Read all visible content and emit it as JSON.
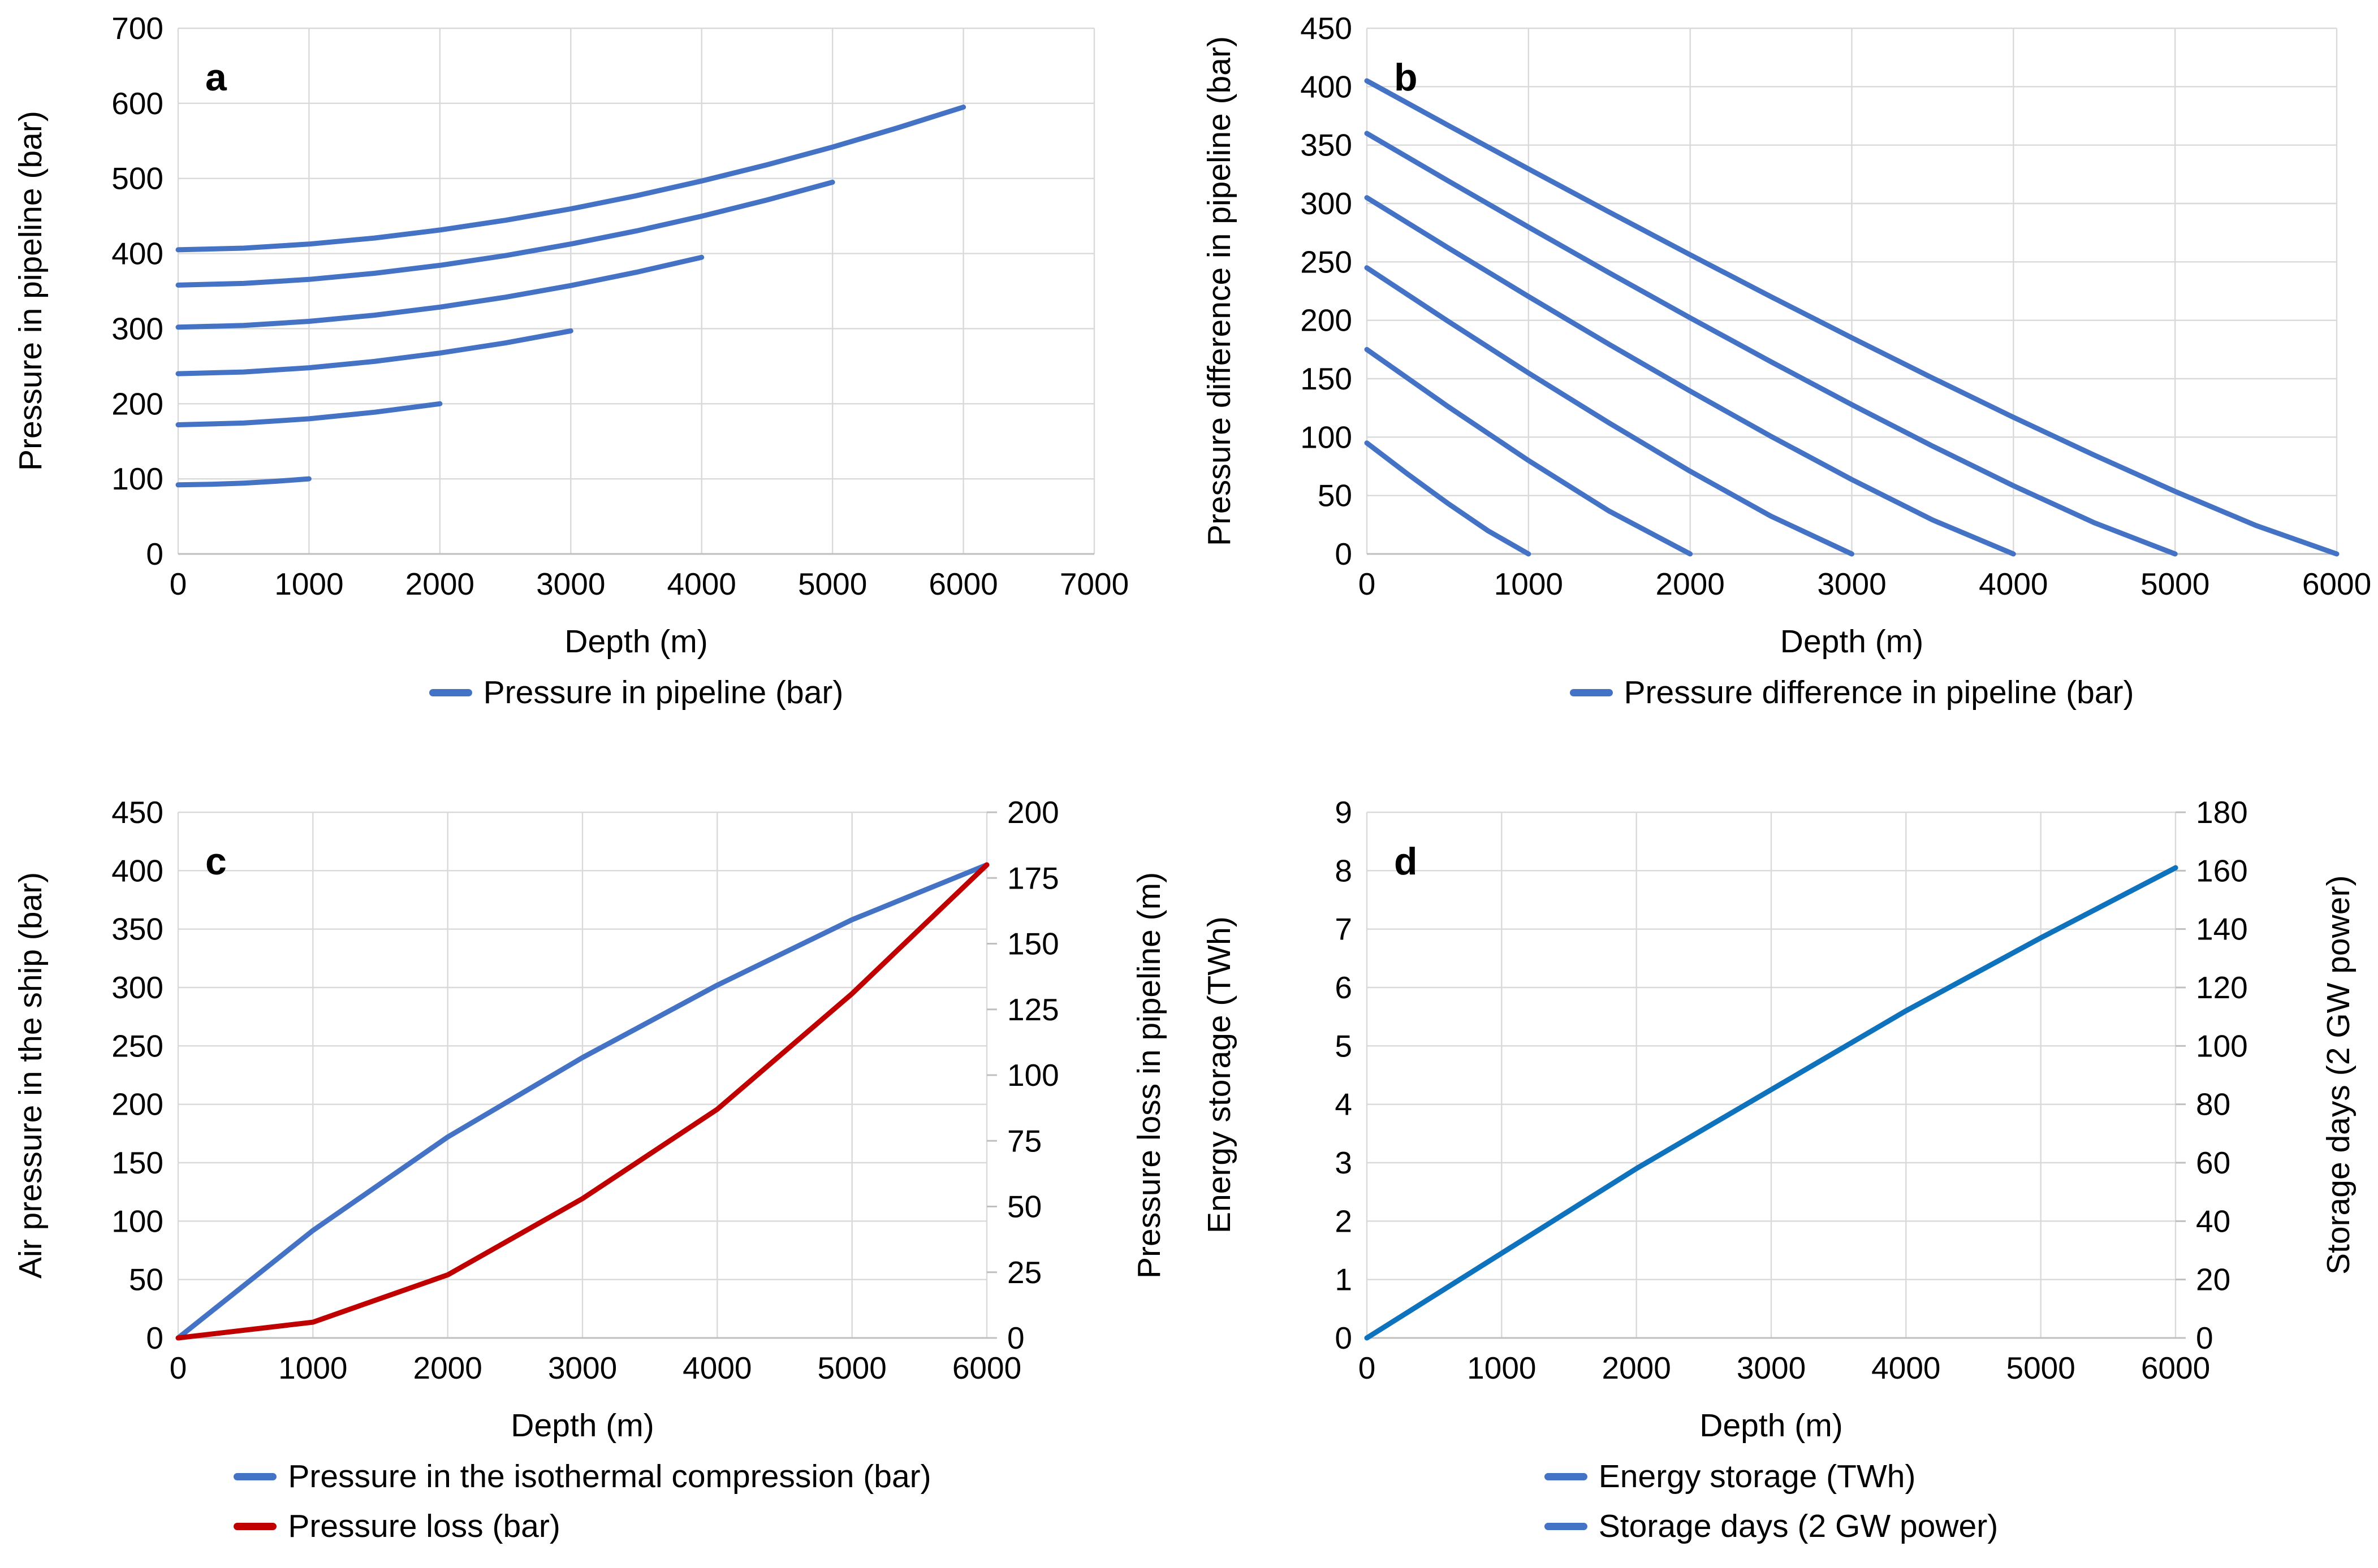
{
  "figure": {
    "background": "#ffffff",
    "panel_letters": [
      "a",
      "b",
      "c",
      "d"
    ]
  },
  "colors": {
    "series_blue": "#4472C4",
    "series_red": "#C00000",
    "panel_d_line_blue": "#0F72BD",
    "grid": "#D9D9D9",
    "axis": "#BFBFBF",
    "text": "#000000"
  },
  "chart_data": [
    {
      "id": "a",
      "type": "line",
      "panel_label": "a",
      "xlabel": "Depth (m)",
      "ylabel": "Pressure in pipeline (bar)",
      "xlim": [
        0,
        7000
      ],
      "xstep": 1000,
      "ylim": [
        0,
        700
      ],
      "ystep": 100,
      "grid": true,
      "legend": [
        {
          "label": "Pressure in pipeline (bar)",
          "color": "#4472C4"
        }
      ],
      "series": [
        {
          "name": "pipeline to 1000 m",
          "color": "#4472C4",
          "axis": "y",
          "x": [
            0,
            250,
            500,
            750,
            1000
          ],
          "y": [
            92,
            92.7,
            94.3,
            96.8,
            100
          ]
        },
        {
          "name": "pipeline to 2000 m",
          "color": "#4472C4",
          "axis": "y",
          "x": [
            0,
            500,
            1000,
            1500,
            2000
          ],
          "y": [
            172,
            174.3,
            180,
            188.7,
            200
          ]
        },
        {
          "name": "pipeline to 3000 m",
          "color": "#4472C4",
          "axis": "y",
          "x": [
            0,
            500,
            1000,
            1500,
            2000,
            2500,
            3000
          ],
          "y": [
            240,
            242.3,
            247.9,
            256.4,
            267.5,
            281,
            297
          ]
        },
        {
          "name": "pipeline to 4000 m",
          "color": "#4472C4",
          "axis": "y",
          "x": [
            0,
            500,
            1000,
            1500,
            2000,
            2500,
            3000,
            3500,
            4000
          ],
          "y": [
            302,
            304.2,
            309.7,
            317.9,
            328.7,
            341.9,
            357.4,
            375.1,
            395
          ]
        },
        {
          "name": "pipeline to 5000 m",
          "color": "#4472C4",
          "axis": "y",
          "x": [
            0,
            500,
            1000,
            1500,
            2000,
            2500,
            3000,
            3500,
            4000,
            4500,
            5000
          ],
          "y": [
            358,
            360.2,
            365.6,
            373.7,
            384.3,
            397.3,
            412.7,
            430.1,
            449.7,
            471.3,
            495
          ]
        },
        {
          "name": "pipeline to 6000 m",
          "color": "#4472C4",
          "axis": "y",
          "x": [
            0,
            500,
            1000,
            1500,
            2000,
            2500,
            3000,
            3500,
            4000,
            4500,
            5000,
            5500,
            6000
          ],
          "y": [
            405,
            407.2,
            412.6,
            420.7,
            431.4,
            444.3,
            459.5,
            477,
            496.6,
            518.2,
            541.8,
            567.5,
            595
          ]
        }
      ]
    },
    {
      "id": "b",
      "type": "line",
      "panel_label": "b",
      "xlabel": "Depth (m)",
      "ylabel": "Pressure difference in pipeline (bar)",
      "xlim": [
        0,
        6000
      ],
      "xstep": 1000,
      "ylim": [
        0,
        450
      ],
      "ystep": 50,
      "grid": true,
      "legend": [
        {
          "label": "Pressure difference in pipeline (bar)",
          "color": "#4472C4"
        }
      ],
      "series": [
        {
          "name": "difference to 1000 m",
          "color": "#4472C4",
          "axis": "y",
          "x": [
            0,
            250,
            500,
            750,
            1000
          ],
          "y": [
            95,
            68.6,
            43.4,
            19.8,
            0
          ]
        },
        {
          "name": "difference to 2000 m",
          "color": "#4472C4",
          "axis": "y",
          "x": [
            0,
            500,
            1000,
            1500,
            2000
          ],
          "y": [
            175,
            126.4,
            80,
            36.6,
            0
          ]
        },
        {
          "name": "difference to 3000 m",
          "color": "#4472C4",
          "axis": "y",
          "x": [
            0,
            500,
            1000,
            1500,
            2000,
            2500,
            3000
          ],
          "y": [
            245,
            199.4,
            154.9,
            112,
            70.8,
            32.3,
            0
          ]
        },
        {
          "name": "difference to 4000 m",
          "color": "#4472C4",
          "axis": "y",
          "x": [
            0,
            500,
            1000,
            1500,
            2000,
            2500,
            3000,
            3500,
            4000
          ],
          "y": [
            305,
            262.3,
            220.4,
            179.3,
            139.4,
            100.7,
            63.7,
            29.1,
            0
          ]
        },
        {
          "name": "difference to 5000 m",
          "color": "#4472C4",
          "axis": "y",
          "x": [
            0,
            500,
            1000,
            1500,
            2000,
            2500,
            3000,
            3500,
            4000,
            4500,
            5000
          ],
          "y": [
            360,
            319.6,
            279.8,
            240.6,
            202.1,
            164.5,
            127.8,
            92.3,
            58.4,
            26.7,
            0
          ]
        },
        {
          "name": "difference to 6000 m",
          "color": "#4472C4",
          "axis": "y",
          "x": [
            0,
            500,
            1000,
            1500,
            2000,
            2500,
            3000,
            3500,
            4000,
            4500,
            5000,
            5500,
            6000
          ],
          "y": [
            405,
            367.1,
            329.6,
            292.6,
            256.1,
            220.2,
            185.1,
            150.6,
            117,
            84.6,
            53.5,
            24.4,
            0
          ]
        }
      ]
    },
    {
      "id": "c",
      "type": "line",
      "panel_label": "c",
      "xlabel": "Depth (m)",
      "ylabel": "Air pressure in the ship (bar)",
      "y2label": "Pressure loss in pipeline (m)",
      "xlim": [
        0,
        6000
      ],
      "xstep": 1000,
      "ylim": [
        0,
        450
      ],
      "ystep": 50,
      "y2lim": [
        0,
        200
      ],
      "y2step": 25,
      "grid": true,
      "legend": [
        {
          "label": "Pressure in the isothermal compression (bar)",
          "color": "#4472C4"
        },
        {
          "label": "Pressure loss (bar)",
          "color": "#C00000"
        }
      ],
      "series": [
        {
          "name": "isothermal compression pressure",
          "color": "#4472C4",
          "axis": "y",
          "x": [
            0,
            1000,
            2000,
            3000,
            4000,
            5000,
            6000
          ],
          "y": [
            0,
            92,
            172,
            240,
            302,
            358,
            405
          ]
        },
        {
          "name": "pressure loss",
          "color": "#C00000",
          "axis": "y2",
          "x": [
            0,
            1000,
            2000,
            3000,
            4000,
            5000,
            6000
          ],
          "y": [
            0,
            6,
            24,
            53,
            87,
            131,
            180
          ]
        }
      ]
    },
    {
      "id": "d",
      "type": "line",
      "panel_label": "d",
      "xlabel": "Depth (m)",
      "ylabel": "Energy storage (TWh)",
      "y2label": "Storage days (2 GW power)",
      "xlim": [
        0,
        6000
      ],
      "xstep": 1000,
      "ylim": [
        0,
        9
      ],
      "ystep": 1,
      "y2lim": [
        0,
        180
      ],
      "y2step": 20,
      "grid": true,
      "legend": [
        {
          "label": "Energy storage (TWh)",
          "color": "#4472C4"
        },
        {
          "label": "Storage days (2 GW power)",
          "color": "#4472C4"
        }
      ],
      "series": [
        {
          "name": "energy storage",
          "color": "#0F72BD",
          "axis": "y",
          "x": [
            0,
            1000,
            2000,
            3000,
            4000,
            5000,
            6000
          ],
          "y": [
            0,
            1.45,
            2.9,
            4.25,
            5.6,
            6.85,
            8.05
          ]
        },
        {
          "name": "storage days",
          "color": "#0F72BD",
          "axis": "y2",
          "x": [
            0,
            1000,
            2000,
            3000,
            4000,
            5000,
            6000
          ],
          "y": [
            0,
            29,
            58,
            85,
            112,
            137,
            161
          ]
        }
      ]
    }
  ]
}
